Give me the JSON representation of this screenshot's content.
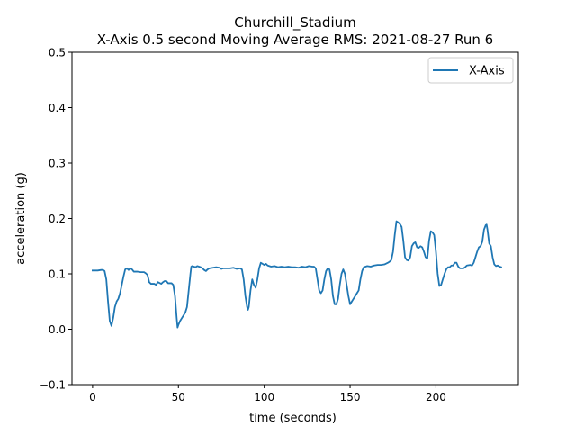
{
  "chart_data": {
    "type": "line",
    "title_line1": "Churchill_Stadium",
    "title_line2": "X-Axis 0.5 second Moving Average RMS: 2021-08-27 Run 6",
    "xlabel": "time (seconds)",
    "ylabel": "acceleration (g)",
    "xlim": [
      -12,
      248
    ],
    "ylim": [
      -0.1,
      0.5
    ],
    "xticks": [
      0,
      50,
      100,
      150,
      200
    ],
    "yticks": [
      -0.1,
      0.0,
      0.1,
      0.2,
      0.3,
      0.4,
      0.5
    ],
    "xtick_labels": [
      "0",
      "50",
      "100",
      "150",
      "200"
    ],
    "ytick_labels": [
      "−0.1",
      "0.0",
      "0.1",
      "0.2",
      "0.3",
      "0.4",
      "0.5"
    ],
    "grid": false,
    "legend_position": "top-right",
    "series": [
      {
        "name": "X-Axis",
        "color": "#1f77b4",
        "points": [
          [
            0,
            0.106
          ],
          [
            3,
            0.106
          ],
          [
            5,
            0.107
          ],
          [
            6,
            0.107
          ],
          [
            7,
            0.105
          ],
          [
            8,
            0.09
          ],
          [
            9,
            0.05
          ],
          [
            10,
            0.015
          ],
          [
            11,
            0.006
          ],
          [
            12,
            0.02
          ],
          [
            13,
            0.04
          ],
          [
            14,
            0.05
          ],
          [
            15,
            0.055
          ],
          [
            16,
            0.065
          ],
          [
            17,
            0.08
          ],
          [
            18,
            0.095
          ],
          [
            19,
            0.108
          ],
          [
            20,
            0.11
          ],
          [
            21,
            0.107
          ],
          [
            22,
            0.11
          ],
          [
            23,
            0.108
          ],
          [
            24,
            0.104
          ],
          [
            26,
            0.104
          ],
          [
            28,
            0.103
          ],
          [
            30,
            0.103
          ],
          [
            31,
            0.101
          ],
          [
            32,
            0.098
          ],
          [
            33,
            0.085
          ],
          [
            34,
            0.082
          ],
          [
            36,
            0.082
          ],
          [
            37,
            0.08
          ],
          [
            38,
            0.085
          ],
          [
            40,
            0.082
          ],
          [
            41,
            0.085
          ],
          [
            42,
            0.087
          ],
          [
            43,
            0.087
          ],
          [
            44,
            0.083
          ],
          [
            46,
            0.083
          ],
          [
            47,
            0.08
          ],
          [
            48,
            0.06
          ],
          [
            49,
            0.02
          ],
          [
            49.5,
            0.003
          ],
          [
            50,
            0.008
          ],
          [
            51,
            0.015
          ],
          [
            52,
            0.02
          ],
          [
            53,
            0.025
          ],
          [
            54,
            0.03
          ],
          [
            55,
            0.04
          ],
          [
            56,
            0.07
          ],
          [
            57,
            0.1
          ],
          [
            57.5,
            0.113
          ],
          [
            58,
            0.114
          ],
          [
            60,
            0.112
          ],
          [
            61,
            0.114
          ],
          [
            63,
            0.112
          ],
          [
            64,
            0.11
          ],
          [
            65,
            0.107
          ],
          [
            66,
            0.105
          ],
          [
            67,
            0.108
          ],
          [
            68,
            0.11
          ],
          [
            70,
            0.111
          ],
          [
            72,
            0.112
          ],
          [
            74,
            0.111
          ],
          [
            75,
            0.109
          ],
          [
            76,
            0.11
          ],
          [
            78,
            0.11
          ],
          [
            80,
            0.11
          ],
          [
            82,
            0.111
          ],
          [
            84,
            0.109
          ],
          [
            86,
            0.11
          ],
          [
            87,
            0.108
          ],
          [
            88,
            0.09
          ],
          [
            89,
            0.06
          ],
          [
            90,
            0.04
          ],
          [
            90.5,
            0.035
          ],
          [
            91,
            0.04
          ],
          [
            92,
            0.07
          ],
          [
            93,
            0.09
          ],
          [
            94,
            0.08
          ],
          [
            95,
            0.075
          ],
          [
            96,
            0.09
          ],
          [
            97,
            0.11
          ],
          [
            98,
            0.12
          ],
          [
            99,
            0.118
          ],
          [
            100,
            0.116
          ],
          [
            101,
            0.118
          ],
          [
            102,
            0.115
          ],
          [
            104,
            0.113
          ],
          [
            106,
            0.114
          ],
          [
            108,
            0.112
          ],
          [
            110,
            0.113
          ],
          [
            112,
            0.112
          ],
          [
            114,
            0.113
          ],
          [
            116,
            0.112
          ],
          [
            118,
            0.112
          ],
          [
            120,
            0.111
          ],
          [
            122,
            0.113
          ],
          [
            124,
            0.112
          ],
          [
            126,
            0.114
          ],
          [
            128,
            0.113
          ],
          [
            129,
            0.113
          ],
          [
            130,
            0.11
          ],
          [
            131,
            0.09
          ],
          [
            132,
            0.07
          ],
          [
            133,
            0.065
          ],
          [
            134,
            0.07
          ],
          [
            135,
            0.09
          ],
          [
            136,
            0.105
          ],
          [
            137,
            0.11
          ],
          [
            138,
            0.108
          ],
          [
            139,
            0.09
          ],
          [
            140,
            0.06
          ],
          [
            141,
            0.045
          ],
          [
            142,
            0.045
          ],
          [
            143,
            0.055
          ],
          [
            144,
            0.08
          ],
          [
            145,
            0.1
          ],
          [
            146,
            0.108
          ],
          [
            147,
            0.1
          ],
          [
            148,
            0.08
          ],
          [
            149,
            0.06
          ],
          [
            150,
            0.045
          ],
          [
            151,
            0.05
          ],
          [
            152,
            0.055
          ],
          [
            153,
            0.06
          ],
          [
            154,
            0.065
          ],
          [
            155,
            0.07
          ],
          [
            156,
            0.09
          ],
          [
            157,
            0.105
          ],
          [
            158,
            0.112
          ],
          [
            160,
            0.114
          ],
          [
            162,
            0.113
          ],
          [
            164,
            0.115
          ],
          [
            166,
            0.116
          ],
          [
            168,
            0.116
          ],
          [
            170,
            0.117
          ],
          [
            172,
            0.12
          ],
          [
            173,
            0.122
          ],
          [
            174,
            0.125
          ],
          [
            175,
            0.14
          ],
          [
            176,
            0.17
          ],
          [
            177,
            0.195
          ],
          [
            178,
            0.193
          ],
          [
            179,
            0.19
          ],
          [
            180,
            0.185
          ],
          [
            181,
            0.16
          ],
          [
            182,
            0.13
          ],
          [
            183,
            0.125
          ],
          [
            184,
            0.124
          ],
          [
            185,
            0.13
          ],
          [
            186,
            0.15
          ],
          [
            187,
            0.155
          ],
          [
            188,
            0.157
          ],
          [
            189,
            0.148
          ],
          [
            190,
            0.147
          ],
          [
            191,
            0.15
          ],
          [
            192,
            0.148
          ],
          [
            193,
            0.14
          ],
          [
            194,
            0.13
          ],
          [
            195,
            0.128
          ],
          [
            196,
            0.16
          ],
          [
            197,
            0.177
          ],
          [
            198,
            0.175
          ],
          [
            199,
            0.17
          ],
          [
            200,
            0.14
          ],
          [
            201,
            0.1
          ],
          [
            202,
            0.078
          ],
          [
            203,
            0.08
          ],
          [
            204,
            0.09
          ],
          [
            205,
            0.1
          ],
          [
            206,
            0.108
          ],
          [
            207,
            0.112
          ],
          [
            208,
            0.112
          ],
          [
            209,
            0.115
          ],
          [
            210,
            0.115
          ],
          [
            211,
            0.12
          ],
          [
            212,
            0.12
          ],
          [
            213,
            0.113
          ],
          [
            214,
            0.11
          ],
          [
            216,
            0.11
          ],
          [
            217,
            0.112
          ],
          [
            218,
            0.115
          ],
          [
            220,
            0.116
          ],
          [
            221,
            0.115
          ],
          [
            222,
            0.12
          ],
          [
            223,
            0.13
          ],
          [
            224,
            0.14
          ],
          [
            225,
            0.148
          ],
          [
            226,
            0.15
          ],
          [
            227,
            0.158
          ],
          [
            228,
            0.18
          ],
          [
            229,
            0.188
          ],
          [
            229.5,
            0.189
          ],
          [
            230,
            0.18
          ],
          [
            231,
            0.155
          ],
          [
            232,
            0.15
          ],
          [
            233,
            0.13
          ],
          [
            234,
            0.117
          ],
          [
            235,
            0.114
          ],
          [
            236,
            0.115
          ],
          [
            237,
            0.113
          ],
          [
            238,
            0.112
          ]
        ]
      }
    ]
  }
}
